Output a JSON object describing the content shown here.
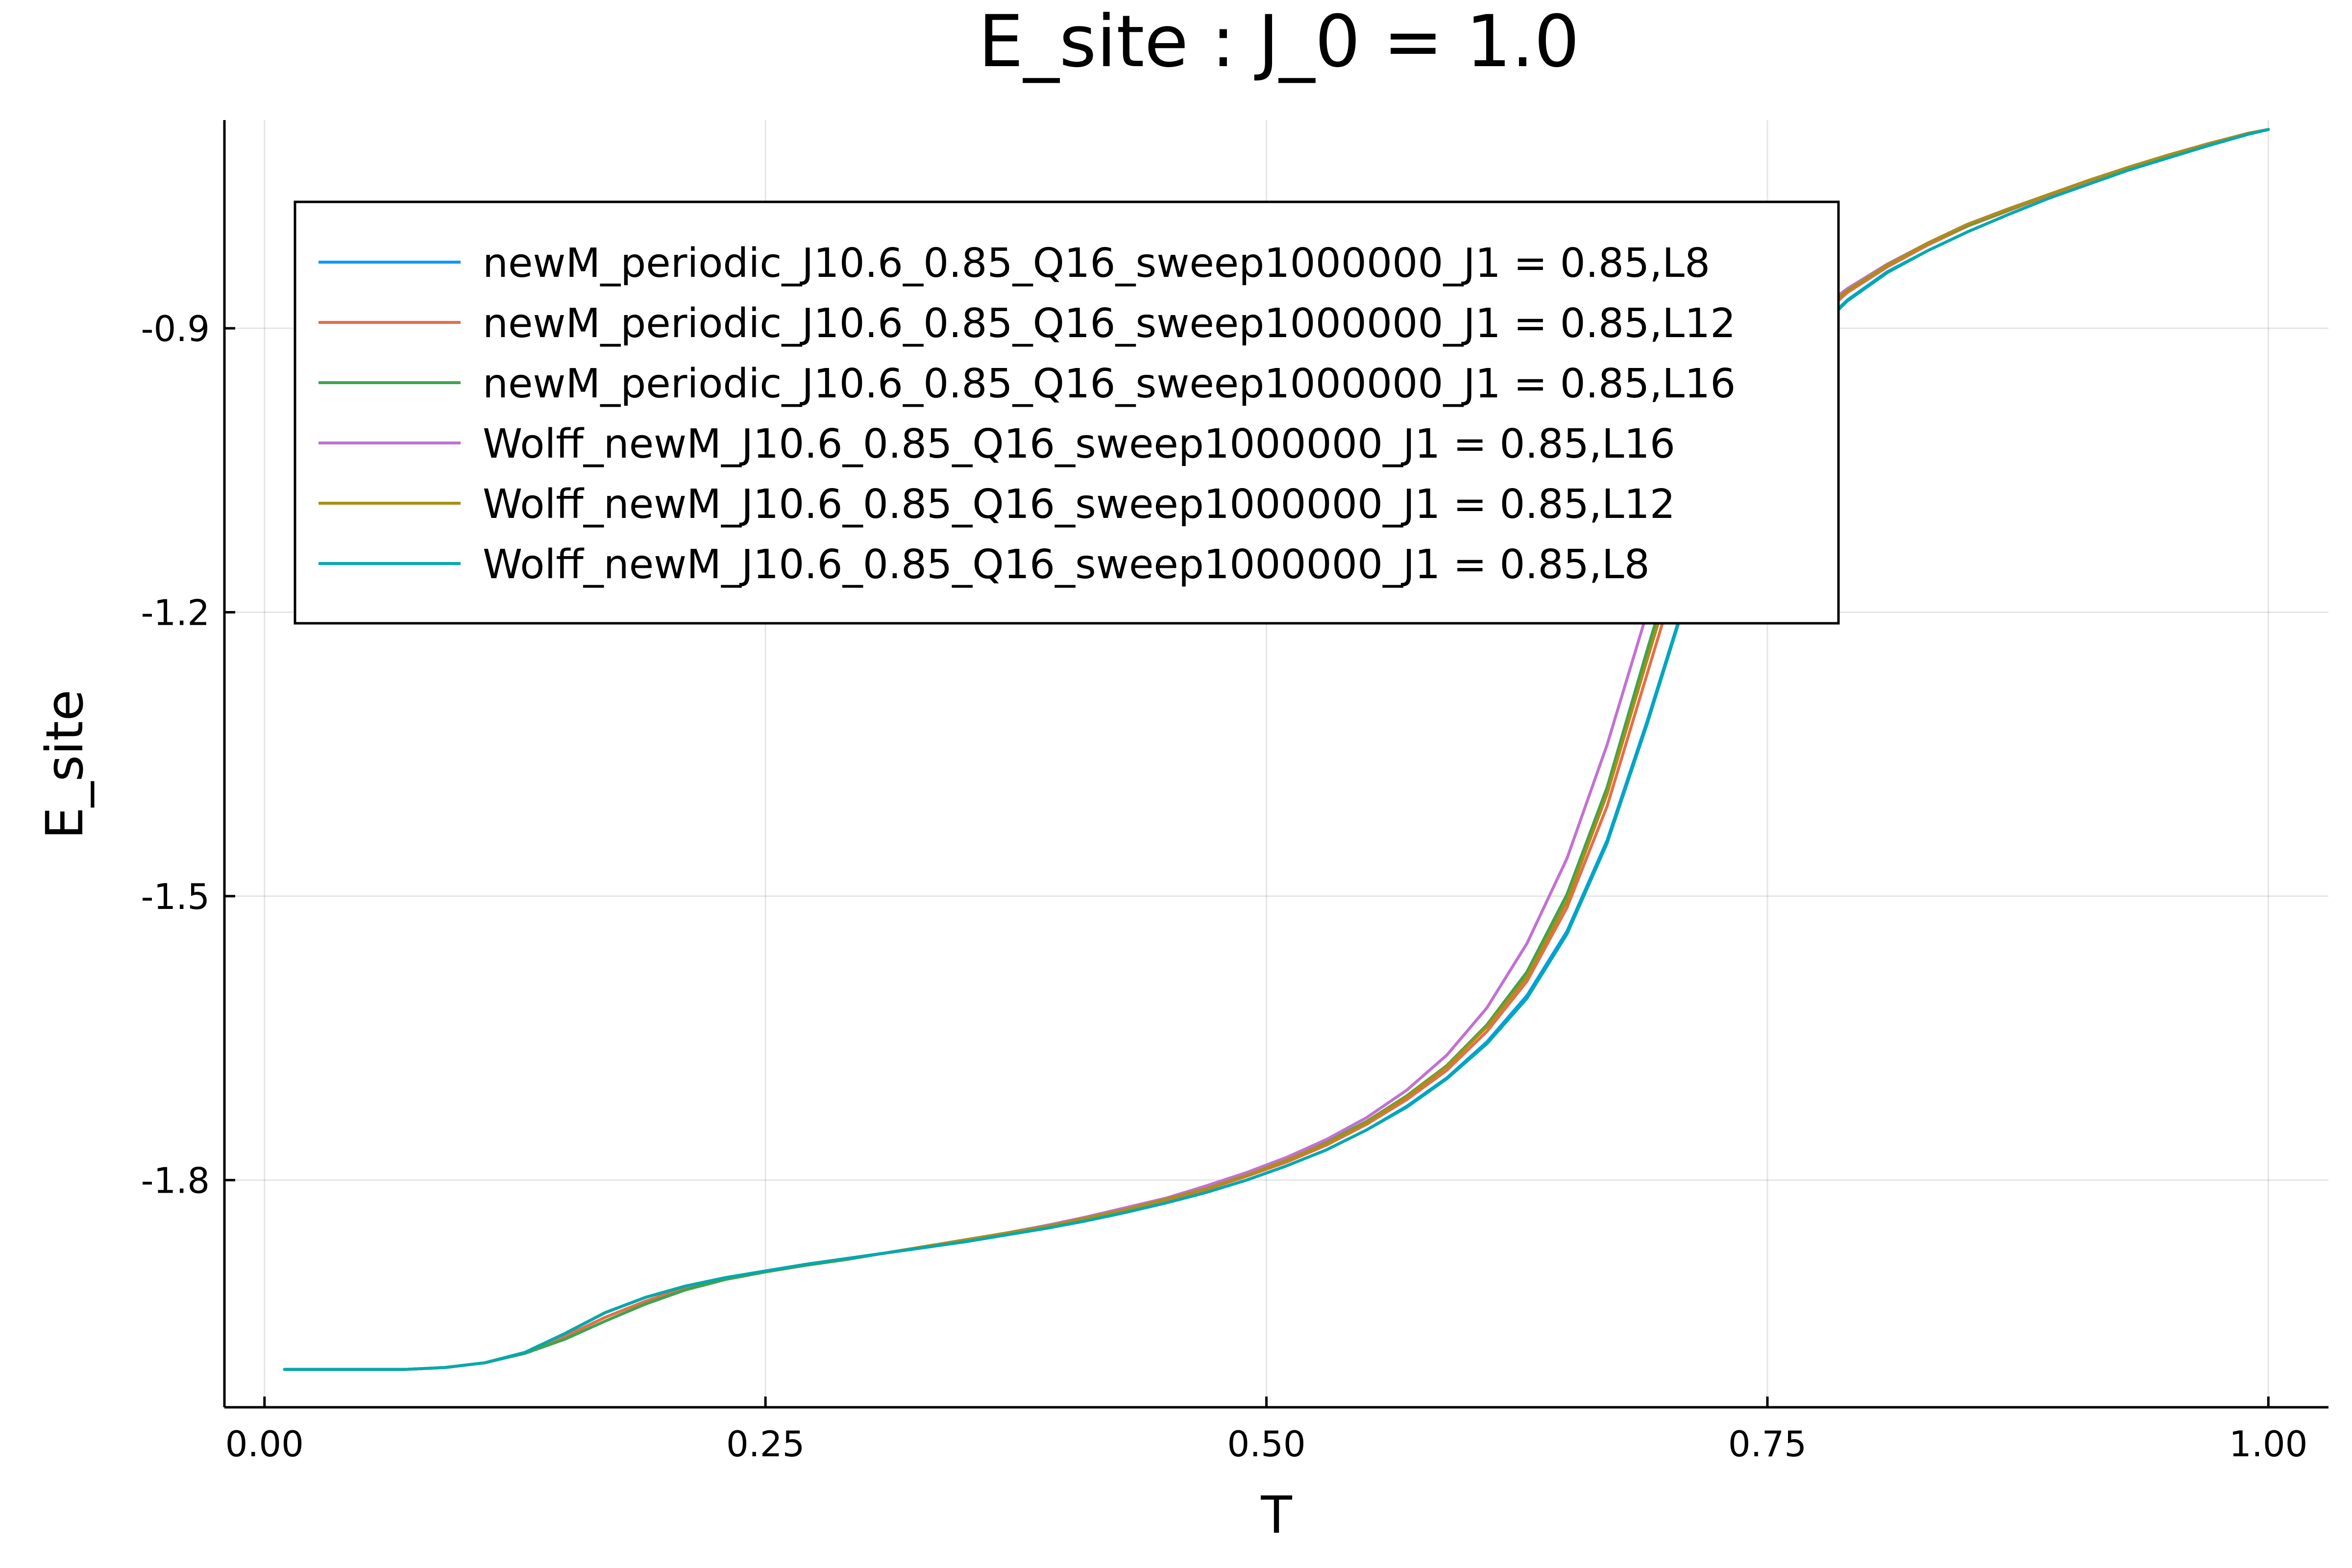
{
  "chart_data": {
    "type": "line",
    "title": "E_site : J_0 = 1.0",
    "xlabel": "T",
    "ylabel": "E_site",
    "xlim": [
      -0.02,
      1.03
    ],
    "ylim": [
      -2.04,
      -0.68
    ],
    "xticks": [
      0.0,
      0.25,
      0.5,
      0.75,
      1.0
    ],
    "xtick_labels": [
      "0.00",
      "0.25",
      "0.50",
      "0.75",
      "1.00"
    ],
    "yticks": [
      -1.8,
      -1.5,
      -1.2,
      -0.9
    ],
    "ytick_labels": [
      "-1.8",
      "-1.5",
      "-1.2",
      "-0.9"
    ],
    "grid": true,
    "legend_position": "top-left",
    "x": [
      0.01,
      0.03,
      0.05,
      0.07,
      0.09,
      0.11,
      0.13,
      0.15,
      0.17,
      0.19,
      0.21,
      0.23,
      0.25,
      0.27,
      0.29,
      0.31,
      0.33,
      0.35,
      0.37,
      0.39,
      0.41,
      0.43,
      0.45,
      0.47,
      0.49,
      0.51,
      0.53,
      0.55,
      0.57,
      0.59,
      0.61,
      0.63,
      0.65,
      0.67,
      0.69,
      0.71,
      0.73,
      0.75,
      0.77,
      0.79,
      0.81,
      0.83,
      0.85,
      0.87,
      0.89,
      0.91,
      0.93,
      0.95,
      0.97,
      0.99,
      1.0
    ],
    "series": [
      {
        "name": "newM_periodic_J10.6_0.85_Q16_sweep1000000_J1 = 0.85,L8",
        "color": "#009AFA",
        "values": [
          -2.0,
          -2.0,
          -2.0,
          -2.0,
          -1.998,
          -1.993,
          -1.982,
          -1.962,
          -1.94,
          -1.924,
          -1.912,
          -1.903,
          -1.896,
          -1.889,
          -1.883,
          -1.877,
          -1.871,
          -1.865,
          -1.858,
          -1.851,
          -1.843,
          -1.834,
          -1.824,
          -1.813,
          -1.8,
          -1.785,
          -1.768,
          -1.747,
          -1.722,
          -1.692,
          -1.654,
          -1.605,
          -1.537,
          -1.441,
          -1.315,
          -1.18,
          -1.06,
          -0.97,
          -0.91,
          -0.87,
          -0.84,
          -0.818,
          -0.798,
          -0.78,
          -0.763,
          -0.748,
          -0.733,
          -0.72,
          -0.707,
          -0.695,
          -0.69
        ]
      },
      {
        "name": "newM_periodic_J10.6_0.85_Q16_sweep1000000_J1 = 0.85,L12",
        "color": "#E36F47",
        "values": [
          -2.0,
          -2.0,
          -2.0,
          -2.0,
          -1.998,
          -1.993,
          -1.982,
          -1.965,
          -1.945,
          -1.928,
          -1.914,
          -1.904,
          -1.896,
          -1.889,
          -1.883,
          -1.877,
          -1.87,
          -1.863,
          -1.856,
          -1.849,
          -1.841,
          -1.832,
          -1.821,
          -1.81,
          -1.796,
          -1.781,
          -1.763,
          -1.741,
          -1.715,
          -1.684,
          -1.643,
          -1.59,
          -1.512,
          -1.405,
          -1.265,
          -1.125,
          -1.02,
          -0.95,
          -0.9,
          -0.862,
          -0.835,
          -0.812,
          -0.792,
          -0.776,
          -0.76,
          -0.745,
          -0.731,
          -0.718,
          -0.706,
          -0.694,
          -0.69
        ]
      },
      {
        "name": "newM_periodic_J10.6_0.85_Q16_sweep1000000_J1 = 0.85,L16",
        "color": "#3EA44E",
        "values": [
          -2.0,
          -2.0,
          -2.0,
          -2.0,
          -1.998,
          -1.993,
          -1.983,
          -1.968,
          -1.949,
          -1.931,
          -1.916,
          -1.905,
          -1.897,
          -1.89,
          -1.884,
          -1.877,
          -1.87,
          -1.863,
          -1.856,
          -1.848,
          -1.84,
          -1.83,
          -1.82,
          -1.808,
          -1.794,
          -1.779,
          -1.76,
          -1.738,
          -1.711,
          -1.679,
          -1.636,
          -1.58,
          -1.498,
          -1.385,
          -1.24,
          -1.1,
          -1.0,
          -0.94,
          -0.895,
          -0.86,
          -0.833,
          -0.81,
          -0.791,
          -0.775,
          -0.759,
          -0.744,
          -0.73,
          -0.717,
          -0.705,
          -0.694,
          -0.69
        ]
      },
      {
        "name": "Wolff_newM_J10.6_0.85_Q16_sweep1000000_J1 = 0.85,L16",
        "color": "#C271D2",
        "values": [
          -2.0,
          -2.0,
          -2.0,
          -2.0,
          -1.998,
          -1.993,
          -1.982,
          -1.962,
          -1.94,
          -1.924,
          -1.912,
          -1.903,
          -1.896,
          -1.889,
          -1.883,
          -1.877,
          -1.87,
          -1.863,
          -1.856,
          -1.848,
          -1.839,
          -1.829,
          -1.819,
          -1.806,
          -1.792,
          -1.776,
          -1.757,
          -1.734,
          -1.705,
          -1.668,
          -1.618,
          -1.55,
          -1.46,
          -1.34,
          -1.2,
          -1.07,
          -0.98,
          -0.93,
          -0.89,
          -0.858,
          -0.832,
          -0.81,
          -0.79,
          -0.774,
          -0.759,
          -0.744,
          -0.73,
          -0.717,
          -0.705,
          -0.694,
          -0.69
        ]
      },
      {
        "name": "Wolff_newM_J10.6_0.85_Q16_sweep1000000_J1 = 0.85,L12",
        "color": "#AC8D18",
        "values": [
          -2.0,
          -2.0,
          -2.0,
          -2.0,
          -1.998,
          -1.993,
          -1.982,
          -1.962,
          -1.94,
          -1.924,
          -1.912,
          -1.903,
          -1.896,
          -1.889,
          -1.883,
          -1.877,
          -1.87,
          -1.863,
          -1.856,
          -1.849,
          -1.84,
          -1.831,
          -1.82,
          -1.809,
          -1.795,
          -1.779,
          -1.761,
          -1.739,
          -1.712,
          -1.68,
          -1.638,
          -1.585,
          -1.505,
          -1.392,
          -1.25,
          -1.11,
          -1.01,
          -0.945,
          -0.895,
          -0.86,
          -0.833,
          -0.81,
          -0.79,
          -0.774,
          -0.759,
          -0.744,
          -0.73,
          -0.717,
          -0.705,
          -0.694,
          -0.69
        ]
      },
      {
        "name": "Wolff_newM_J10.6_0.85_Q16_sweep1000000_J1 = 0.85,L8",
        "color": "#00A9AD",
        "values": [
          -2.0,
          -2.0,
          -2.0,
          -2.0,
          -1.998,
          -1.993,
          -1.982,
          -1.962,
          -1.94,
          -1.924,
          -1.912,
          -1.903,
          -1.896,
          -1.889,
          -1.883,
          -1.877,
          -1.871,
          -1.865,
          -1.858,
          -1.851,
          -1.843,
          -1.834,
          -1.824,
          -1.813,
          -1.8,
          -1.785,
          -1.768,
          -1.747,
          -1.723,
          -1.693,
          -1.656,
          -1.608,
          -1.54,
          -1.444,
          -1.318,
          -1.182,
          -1.062,
          -0.972,
          -0.912,
          -0.871,
          -0.841,
          -0.818,
          -0.798,
          -0.78,
          -0.763,
          -0.748,
          -0.733,
          -0.72,
          -0.707,
          -0.695,
          -0.69
        ]
      }
    ]
  }
}
